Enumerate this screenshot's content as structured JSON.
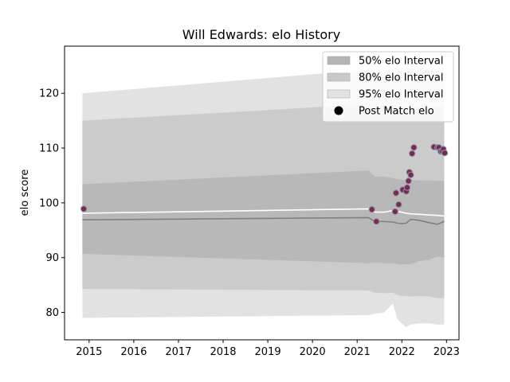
{
  "chart_data": {
    "type": "line",
    "title": "Will Edwards: elo History",
    "xlabel": "",
    "ylabel": "elo score",
    "xlim": [
      2014.45,
      2023.28
    ],
    "ylim": [
      75.0,
      128.6
    ],
    "xticks": [
      {
        "value": 2015,
        "label": "2015"
      },
      {
        "value": 2016,
        "label": "2016"
      },
      {
        "value": 2017,
        "label": "2017"
      },
      {
        "value": 2018,
        "label": "2018"
      },
      {
        "value": 2019,
        "label": "2019"
      },
      {
        "value": 2020,
        "label": "2020"
      },
      {
        "value": 2021,
        "label": "2021"
      },
      {
        "value": 2022,
        "label": "2022"
      },
      {
        "value": 2023,
        "label": "2023"
      }
    ],
    "yticks": [
      {
        "value": 80,
        "label": "80"
      },
      {
        "value": 90,
        "label": "90"
      },
      {
        "value": 100,
        "label": "100"
      },
      {
        "value": 110,
        "label": "110"
      },
      {
        "value": 120,
        "label": "120"
      }
    ],
    "legend_position": "top-right",
    "legend": [
      {
        "label": "50% elo Interval",
        "kind": "patch",
        "color": "#b4b4b4"
      },
      {
        "label": "80% elo Interval",
        "kind": "patch",
        "color": "#c9c9c9"
      },
      {
        "label": "95% elo Interval",
        "kind": "patch",
        "color": "#e2e2e2"
      },
      {
        "label": "Post Match elo",
        "kind": "marker",
        "color": "#000000"
      }
    ],
    "colors": {
      "band95": "#e2e2e2",
      "band80": "#cbcbcb",
      "band50": "#b8b8b8",
      "mean_line": "#808080",
      "median_line": "#ffffff",
      "marker_fill": "#7a2a4a",
      "marker_edge": "#8a8fb0"
    },
    "bands": {
      "x": [
        2014.85,
        2021.25,
        2021.4,
        2021.6,
        2021.8,
        2021.9,
        2022.0,
        2022.1,
        2022.2,
        2022.4,
        2022.6,
        2022.8,
        2022.95
      ],
      "upper95": [
        120.0,
        124.3,
        124.5,
        124.3,
        124.5,
        124.6,
        124.7,
        124.7,
        124.8,
        124.8,
        124.8,
        124.8,
        124.8
      ],
      "lower95": [
        79.0,
        79.5,
        79.8,
        80.0,
        81.6,
        78.8,
        78.0,
        77.3,
        77.8,
        78.0,
        78.0,
        77.8,
        77.8
      ],
      "upper80": [
        115.0,
        118.0,
        117.8,
        117.7,
        117.8,
        117.6,
        117.6,
        117.6,
        117.6,
        117.6,
        117.6,
        117.5,
        117.5
      ],
      "lower80": [
        84.3,
        84.0,
        83.6,
        83.5,
        83.6,
        83.2,
        83.0,
        83.0,
        82.9,
        83.0,
        82.9,
        82.6,
        82.6
      ],
      "upper50": [
        103.4,
        105.9,
        104.8,
        104.8,
        104.5,
        104.3,
        104.2,
        104.2,
        104.2,
        104.1,
        104.1,
        104.0,
        104.0
      ],
      "lower50": [
        90.7,
        89.0,
        89.1,
        89.0,
        89.0,
        88.8,
        88.7,
        88.8,
        88.8,
        89.4,
        89.6,
        90.2,
        90.0
      ],
      "mean": [
        96.9,
        97.3,
        96.6,
        96.6,
        96.5,
        96.3,
        96.2,
        96.3,
        97.0,
        96.8,
        96.4,
        96.1,
        96.6
      ],
      "median": [
        98.1,
        98.9,
        98.3,
        98.3,
        98.6,
        98.4,
        98.3,
        98.1,
        98.0,
        97.9,
        97.8,
        97.7,
        97.6
      ]
    },
    "points": [
      {
        "x": 2014.88,
        "y": 98.9
      },
      {
        "x": 2021.33,
        "y": 98.8
      },
      {
        "x": 2021.43,
        "y": 96.6
      },
      {
        "x": 2021.85,
        "y": 98.4
      },
      {
        "x": 2021.87,
        "y": 101.8
      },
      {
        "x": 2021.93,
        "y": 99.7
      },
      {
        "x": 2022.02,
        "y": 102.4
      },
      {
        "x": 2022.1,
        "y": 102.1
      },
      {
        "x": 2022.12,
        "y": 102.8
      },
      {
        "x": 2022.15,
        "y": 104.0
      },
      {
        "x": 2022.17,
        "y": 105.6
      },
      {
        "x": 2022.2,
        "y": 105.1
      },
      {
        "x": 2022.23,
        "y": 109.0
      },
      {
        "x": 2022.27,
        "y": 110.1
      },
      {
        "x": 2022.72,
        "y": 110.2
      },
      {
        "x": 2022.8,
        "y": 110.1
      },
      {
        "x": 2022.83,
        "y": 110.1
      },
      {
        "x": 2022.87,
        "y": 109.4
      },
      {
        "x": 2022.9,
        "y": 109.5
      },
      {
        "x": 2022.93,
        "y": 109.8
      },
      {
        "x": 2022.96,
        "y": 109.1
      }
    ]
  }
}
